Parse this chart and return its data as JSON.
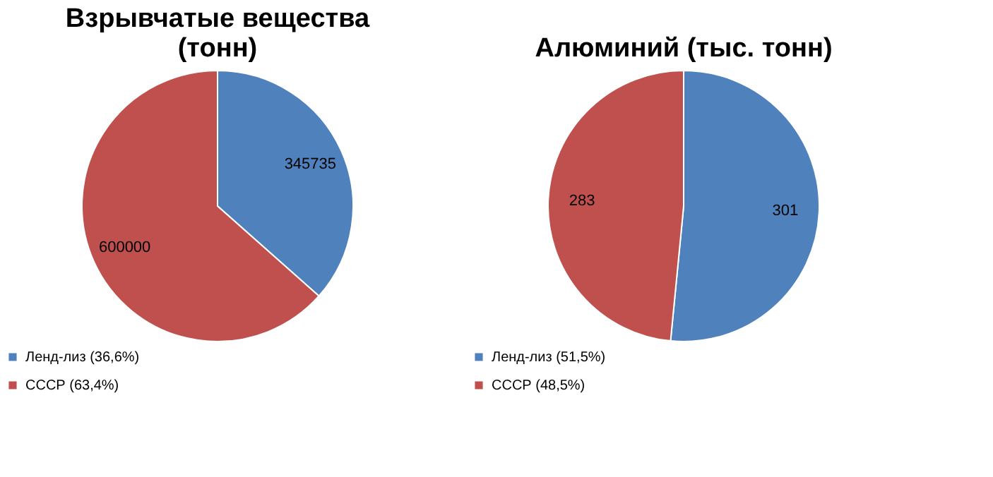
{
  "chart_data": [
    {
      "type": "pie",
      "title": "Взрывчатые вещества (тонн)",
      "categories": [
        "Ленд-лиз (36,6%)",
        "СССР (63,4%)"
      ],
      "values": [
        345735,
        600000
      ],
      "colors": [
        "#4f81bd",
        "#c0504d"
      ],
      "data_labels": true,
      "legend": "bottom"
    },
    {
      "type": "pie",
      "title": "Алюминий (тыс. тонн)",
      "categories": [
        "Ленд-лиз (51,5%)",
        "СССР (48,5%)"
      ],
      "values": [
        301,
        283
      ],
      "colors": [
        "#4f81bd",
        "#c0504d"
      ],
      "data_labels": true,
      "legend": "bottom"
    }
  ]
}
